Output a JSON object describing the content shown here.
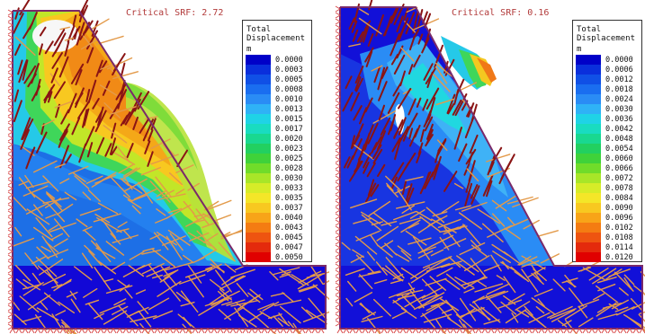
{
  "panels": [
    {
      "title": "Critical SRF: 2.72",
      "legend": {
        "title_line1": "Total",
        "title_line2": "Displacement",
        "unit": "m",
        "values": [
          "0.0000",
          "0.0003",
          "0.0005",
          "0.0008",
          "0.0010",
          "0.0013",
          "0.0015",
          "0.0017",
          "0.0020",
          "0.0023",
          "0.0025",
          "0.0028",
          "0.0030",
          "0.0033",
          "0.0035",
          "0.0037",
          "0.0040",
          "0.0043",
          "0.0045",
          "0.0047",
          "0.0050"
        ]
      }
    },
    {
      "title": "Critical SRF: 0.16",
      "legend": {
        "title_line1": "Total",
        "title_line2": "Displacement",
        "unit": "m",
        "values": [
          "0.0000",
          "0.0006",
          "0.0012",
          "0.0018",
          "0.0024",
          "0.0030",
          "0.0036",
          "0.0042",
          "0.0048",
          "0.0054",
          "0.0060",
          "0.0066",
          "0.0072",
          "0.0078",
          "0.0084",
          "0.0090",
          "0.0096",
          "0.0102",
          "0.0108",
          "0.0114",
          "0.0120"
        ]
      }
    }
  ],
  "colormap": [
    "#0000c8",
    "#0a2fdc",
    "#1050e6",
    "#1a6ef0",
    "#2a8cf5",
    "#2fb2f6",
    "#1fd3e6",
    "#19dcc0",
    "#19d890",
    "#22d060",
    "#3fd23a",
    "#70dc2a",
    "#a8e628",
    "#d6ec28",
    "#f4e628",
    "#f8c820",
    "#f8a418",
    "#f47c12",
    "#ee5410",
    "#e42a0c",
    "#e00000"
  ],
  "colors": {
    "title_text": "#b23a3a",
    "boundary": "#7a2a6a",
    "restraint": "#d84a4a",
    "joint_light": "#e39a4a",
    "joint_dark": "#8a1414"
  }
}
